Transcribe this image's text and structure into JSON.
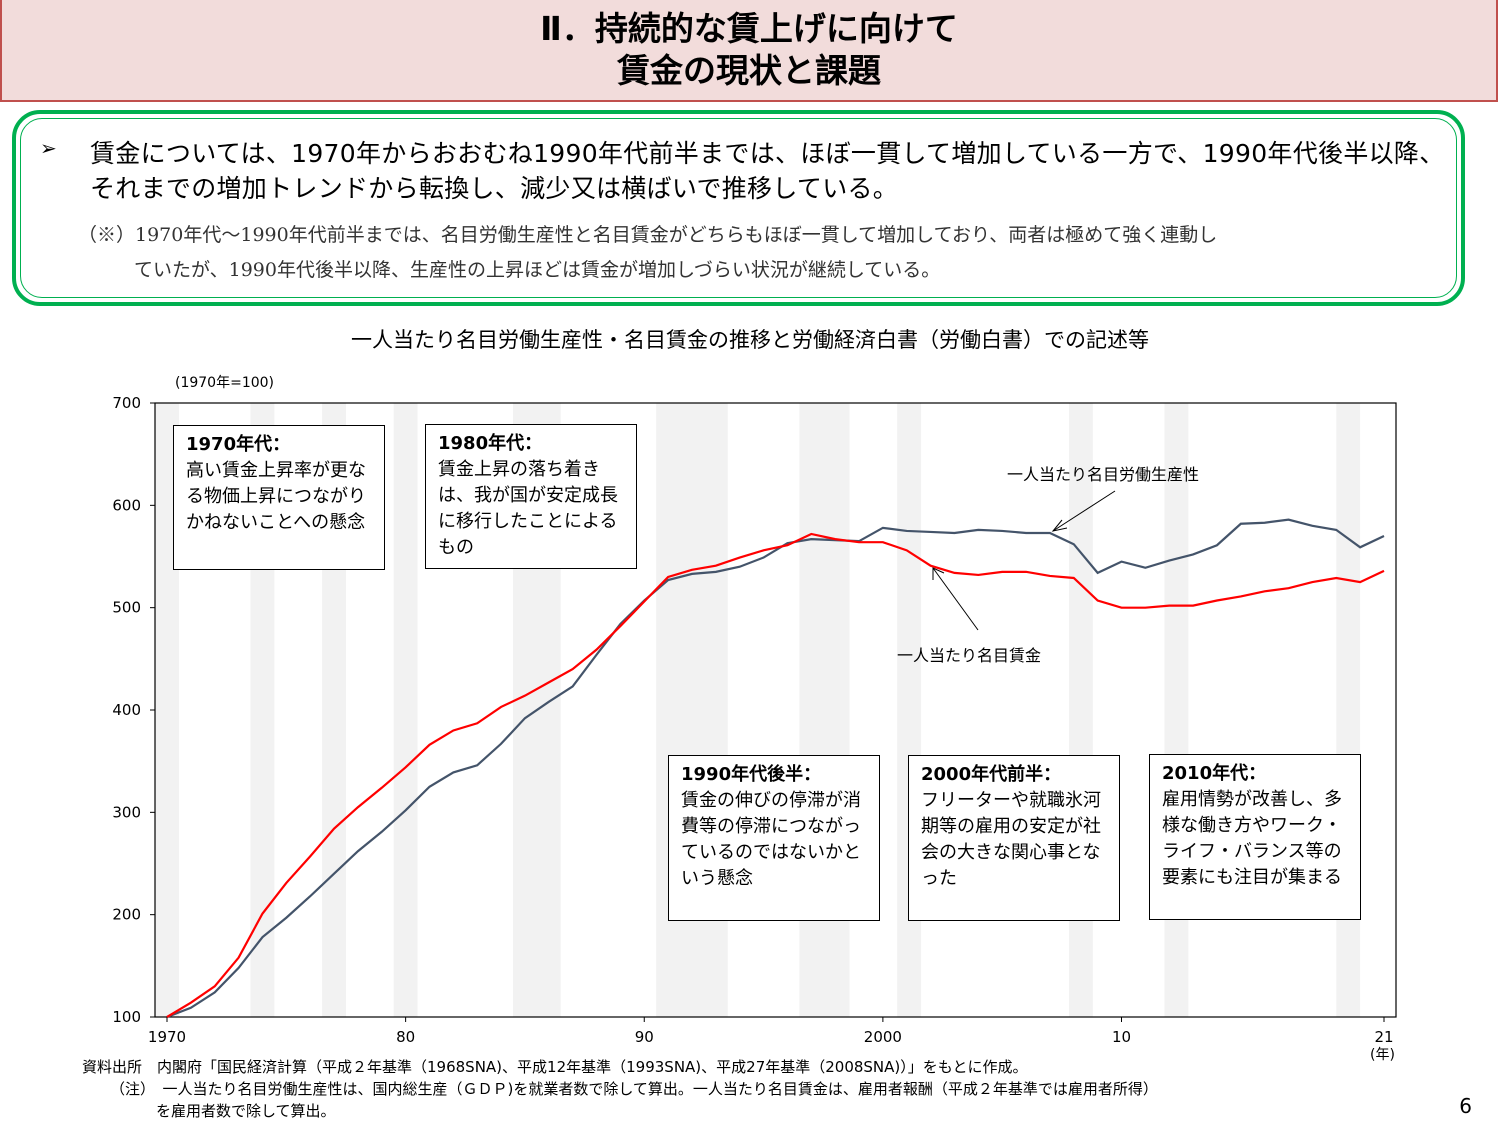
{
  "header": {
    "line1": "Ⅱ．持続的な賃上げに向けて",
    "line2": "賃金の現状と課題"
  },
  "summary": {
    "bullet": "➢",
    "lead": "賃金については、1970年からおおむね1990年代前半までは、ほぼ一貫して増加している一方で、1990年代後半以降、それまでの増加トレンドから転換し、減少又は横ばいで推移している。",
    "note_line1": "（※）1970年代～1990年代前半までは、名目労働生産性と名目賃金がどちらもほぼ一貫して増加しており、両者は極めて強く連動し",
    "note_line2": "ていたが、1990年代後半以降、生産性の上昇ほどは賃金が増加しづらい状況が継続している。"
  },
  "chart_data": {
    "type": "line",
    "title": "一人当たり名目労働生産性・名目賃金の推移と労働経済白書（労働白書）での記述等",
    "ylabel": "(1970年=100)",
    "xlabel_unit": "(年)",
    "ylim": [
      100,
      700
    ],
    "yticks": [
      100,
      200,
      300,
      400,
      500,
      600,
      700
    ],
    "xlim": [
      1970,
      2021
    ],
    "xticks": [
      {
        "v": 1970,
        "label": "1970"
      },
      {
        "v": 1980,
        "label": "80"
      },
      {
        "v": 1990,
        "label": "90"
      },
      {
        "v": 2000,
        "label": "2000"
      },
      {
        "v": 2010,
        "label": "10"
      },
      {
        "v": 2021,
        "label": "21"
      }
    ],
    "grid": false,
    "x": [
      1970,
      1971,
      1972,
      1973,
      1974,
      1975,
      1976,
      1977,
      1978,
      1979,
      1980,
      1981,
      1982,
      1983,
      1984,
      1985,
      1986,
      1987,
      1988,
      1989,
      1990,
      1991,
      1992,
      1993,
      1994,
      1995,
      1996,
      1997,
      1998,
      1999,
      2000,
      2001,
      2002,
      2003,
      2004,
      2005,
      2006,
      2007,
      2008,
      2009,
      2010,
      2011,
      2012,
      2013,
      2014,
      2015,
      2016,
      2017,
      2018,
      2019,
      2020,
      2021
    ],
    "series": [
      {
        "name": "一人当たり名目労働生産性",
        "color": "#44546a",
        "values": [
          100,
          109,
          124,
          148,
          178,
          197,
          218,
          240,
          262,
          281,
          302,
          325,
          339,
          346,
          367,
          392,
          408,
          423,
          454,
          484,
          507,
          527,
          533,
          535,
          540,
          549,
          563,
          567,
          566,
          565,
          578,
          575,
          574,
          573,
          576,
          575,
          573,
          573,
          562,
          534,
          545,
          539,
          546,
          552,
          561,
          582,
          583,
          586,
          580,
          576,
          559,
          570
        ]
      },
      {
        "name": "一人当たり名目賃金",
        "color": "#ff0000",
        "values": [
          100,
          114,
          130,
          158,
          201,
          231,
          257,
          284,
          305,
          324,
          344,
          366,
          380,
          387,
          403,
          414,
          427,
          440,
          459,
          482,
          506,
          530,
          537,
          541,
          549,
          556,
          561,
          572,
          567,
          564,
          564,
          556,
          541,
          534,
          532,
          535,
          535,
          531,
          529,
          507,
          500,
          500,
          502,
          502,
          507,
          511,
          516,
          519,
          525,
          529,
          525,
          536
        ]
      }
    ],
    "shaded_periods": [
      [
        1969.5,
        1970.5
      ],
      [
        1973.5,
        1974.5
      ],
      [
        1976.5,
        1977.5
      ],
      [
        1979.5,
        1980.5
      ],
      [
        1984.5,
        1986.5
      ],
      [
        1990.5,
        1993.5
      ],
      [
        1996.5,
        1998.6
      ],
      [
        2000.6,
        2001.6
      ],
      [
        2007.8,
        2008.8
      ],
      [
        2011.8,
        2012.8
      ],
      [
        2019,
        2020
      ]
    ],
    "shade_color": "#f2f2f2",
    "annotations": [
      {
        "head": "1970年代：",
        "body": "高い賃金上昇率が更なる物価上昇につながりかねないことへの懸念"
      },
      {
        "head": "1980年代：",
        "body": "賃金上昇の落ち着きは、我が国が安定成長に移行したことによるもの"
      },
      {
        "head": "1990年代後半：",
        "body": "賃金の伸びの停滞が消費等の停滞につながっているのではないかという懸念"
      },
      {
        "head": "2000年代前半：",
        "body": "フリーターや就職氷河期等の雇用の安定が社会の大きな関心事となった"
      },
      {
        "head": "2010年代：",
        "body": "雇用情勢が改善し、多様な働き方やワーク・ライフ・バランス等の要素にも注目が集まる"
      }
    ]
  },
  "footer": {
    "source": "資料出所　内閣府「国民経済計算（平成２年基準（1968SNA)、平成12年基準（1993SNA)、平成27年基準（2008SNA)）」をもとに作成。",
    "note1": "（注）　一人当たり名目労働生産性は、国内総生産（ＧＤＰ)を就業者数で除して算出。一人当たり名目賃金は、雇用者報酬（平成２年基準では雇用者所得）",
    "note2": "を雇用者数で除して算出。"
  },
  "page_number": "6"
}
